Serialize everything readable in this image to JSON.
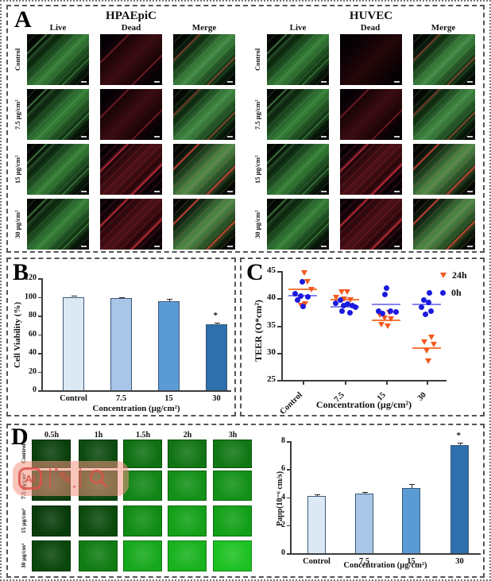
{
  "panels": {
    "a": {
      "label": "A",
      "groups": [
        {
          "title": "HPAEpiC"
        },
        {
          "title": "HUVEC"
        }
      ],
      "col_headers": [
        "Live",
        "Dead",
        "Merge"
      ],
      "row_labels": [
        "Control",
        "7.5 µg/cm²",
        "15 µg/cm²",
        "30 µg/cm²"
      ],
      "live_color": "#2f7d33",
      "dead_color": "#a81620"
    },
    "b": {
      "label": "B"
    },
    "c": {
      "label": "C"
    },
    "d": {
      "label": "D",
      "time_headers": [
        "0.5h",
        "1h",
        "1.5h",
        "2h",
        "3h"
      ],
      "row_labels": [
        "Control",
        "7.5 µg/cm²",
        "15 µg/cm²",
        "30 µg/cm²"
      ],
      "fluorescence_colors": [
        [
          "#0b400d",
          "#0d4a10",
          "#0f7013",
          "#117414",
          "#117715"
        ],
        [
          "#0b400d",
          "#0c480f",
          "#128517",
          "#139018",
          "#139118"
        ],
        [
          "#093c0b",
          "#0b4a0d",
          "#108c14",
          "#13a018",
          "#12a017"
        ],
        [
          "#0a470c",
          "#107c13",
          "#16a81c",
          "#18b21e",
          "#1cc122"
        ]
      ]
    }
  },
  "watermark": {
    "ai_label": "AI",
    "icons": [
      "ai-badge",
      "pen-sparkle",
      "magnifier"
    ],
    "background": "#f4937f",
    "accent": "#dd5146"
  },
  "chart_data": [
    {
      "id": "cell-viability",
      "type": "bar",
      "panel": "B",
      "categories": [
        "Control",
        "7.5",
        "15",
        "30"
      ],
      "values": [
        100,
        98.5,
        95.5,
        71
      ],
      "errors": [
        1.5,
        1,
        2.5,
        1
      ],
      "significance": [
        "",
        "",
        "",
        "*"
      ],
      "bar_colors": [
        "#dce9f5",
        "#a9c6e8",
        "#5b9bd5",
        "#2e6fad"
      ],
      "bar_border": "#3c5a78",
      "xlabel": "Concentration (µg/cm²)",
      "ylabel": "Cell Viability (%)",
      "ylim": [
        0,
        120
      ],
      "yticks": [
        0,
        20,
        40,
        60,
        80,
        100,
        120
      ]
    },
    {
      "id": "teer",
      "type": "scatter",
      "panel": "C",
      "categories": [
        "Control",
        "7.5",
        "15",
        "30"
      ],
      "xlabel": "Concentration (µg/cm²)",
      "ylabel": "TEER (O*cm²)",
      "ylim": [
        25,
        45
      ],
      "yticks": [
        25,
        30,
        35,
        40,
        45
      ],
      "legend": [
        {
          "label": "24h",
          "color": "#f4581c",
          "marker": "triangle-down"
        },
        {
          "label": "0h",
          "color": "#1a1adf",
          "marker": "circle"
        }
      ],
      "series": [
        {
          "name": "24h",
          "marker": "triangle-down",
          "color": "#f4581c",
          "mean_color": "#f4793b",
          "groups": [
            {
              "mean": 41.6,
              "points": [
                [
                  2,
                  44.7
                ],
                [
                  6,
                  43.0
                ],
                [
                  11,
                  41.5
                ],
                [
                  3,
                  39.0
                ],
                [
                  -2,
                  38.6
                ]
              ]
            },
            {
              "mean": 39.7,
              "points": [
                [
                  -4,
                  41.1
                ],
                [
                  3,
                  41.1
                ],
                [
                  -11,
                  40.1
                ],
                [
                  -1,
                  39.8
                ],
                [
                  7,
                  39.7
                ]
              ]
            },
            {
              "mean": 36.0,
              "points": [
                [
                  4,
                  37.4
                ],
                [
                  -8,
                  36.9
                ],
                [
                  -2,
                  36.3
                ],
                [
                  6,
                  36.1
                ],
                [
                  -6,
                  35.2
                ],
                [
                  2,
                  34.8
                ]
              ]
            },
            {
              "mean": 30.9,
              "points": [
                [
                  6,
                  32.8
                ],
                [
                  -3,
                  31.9
                ],
                [
                  9,
                  31.5
                ],
                [
                  0,
                  30.4
                ],
                [
                  2,
                  28.5
                ]
              ]
            }
          ]
        },
        {
          "name": "0h",
          "marker": "circle",
          "color": "#1a1adf",
          "mean_color": "#8585ef",
          "groups": [
            {
              "mean": 40.5,
              "points": [
                [
                  -1,
                  43.0
                ],
                [
                  -10,
                  40.8
                ],
                [
                  -3,
                  40.4
                ],
                [
                  6,
                  40.2
                ],
                [
                  -7,
                  39.6
                ],
                [
                  0,
                  38.5
                ]
              ]
            },
            {
              "mean": 38.5,
              "points": [
                [
                  -6,
                  39.6
                ],
                [
                  -12,
                  39.1
                ],
                [
                  3,
                  39.0
                ],
                [
                  -2,
                  38.6
                ],
                [
                  9,
                  38.6
                ],
                [
                  13,
                  38.3
                ],
                [
                  -4,
                  37.6
                ],
                [
                  6,
                  37.4
                ]
              ]
            },
            {
              "mean": 38.8,
              "points": [
                [
                  0,
                  41.9
                ],
                [
                  -2,
                  40.7
                ],
                [
                  -10,
                  37.7
                ],
                [
                  5,
                  37.6
                ],
                [
                  12,
                  37.5
                ],
                [
                  -5,
                  37.2
                ]
              ]
            },
            {
              "mean": 38.8,
              "points": [
                [
                  3,
                  41.0
                ],
                [
                  -4,
                  39.7
                ],
                [
                  2,
                  39.3
                ],
                [
                  -7,
                  38.4
                ],
                [
                  5,
                  37.7
                ],
                [
                  -2,
                  37.0
                ]
              ]
            }
          ]
        }
      ]
    },
    {
      "id": "papp",
      "type": "bar",
      "panel": "D",
      "categories": [
        "Control",
        "7.5",
        "15",
        "30"
      ],
      "values": [
        4.1,
        4.25,
        4.65,
        7.7
      ],
      "errors": [
        0.1,
        0.1,
        0.3,
        0.2
      ],
      "significance": [
        "",
        "",
        "",
        "*"
      ],
      "bar_colors": [
        "#dce9f5",
        "#a9c6e8",
        "#5b9bd5",
        "#2e6fad"
      ],
      "bar_border": "#3c5a78",
      "xlabel": "Concentration (µg/cm²)",
      "ylabel": "Papp(10⁻⁶ cm/s)",
      "ylim": [
        0,
        8
      ],
      "yticks": [
        0,
        2,
        4,
        6,
        8
      ]
    }
  ]
}
